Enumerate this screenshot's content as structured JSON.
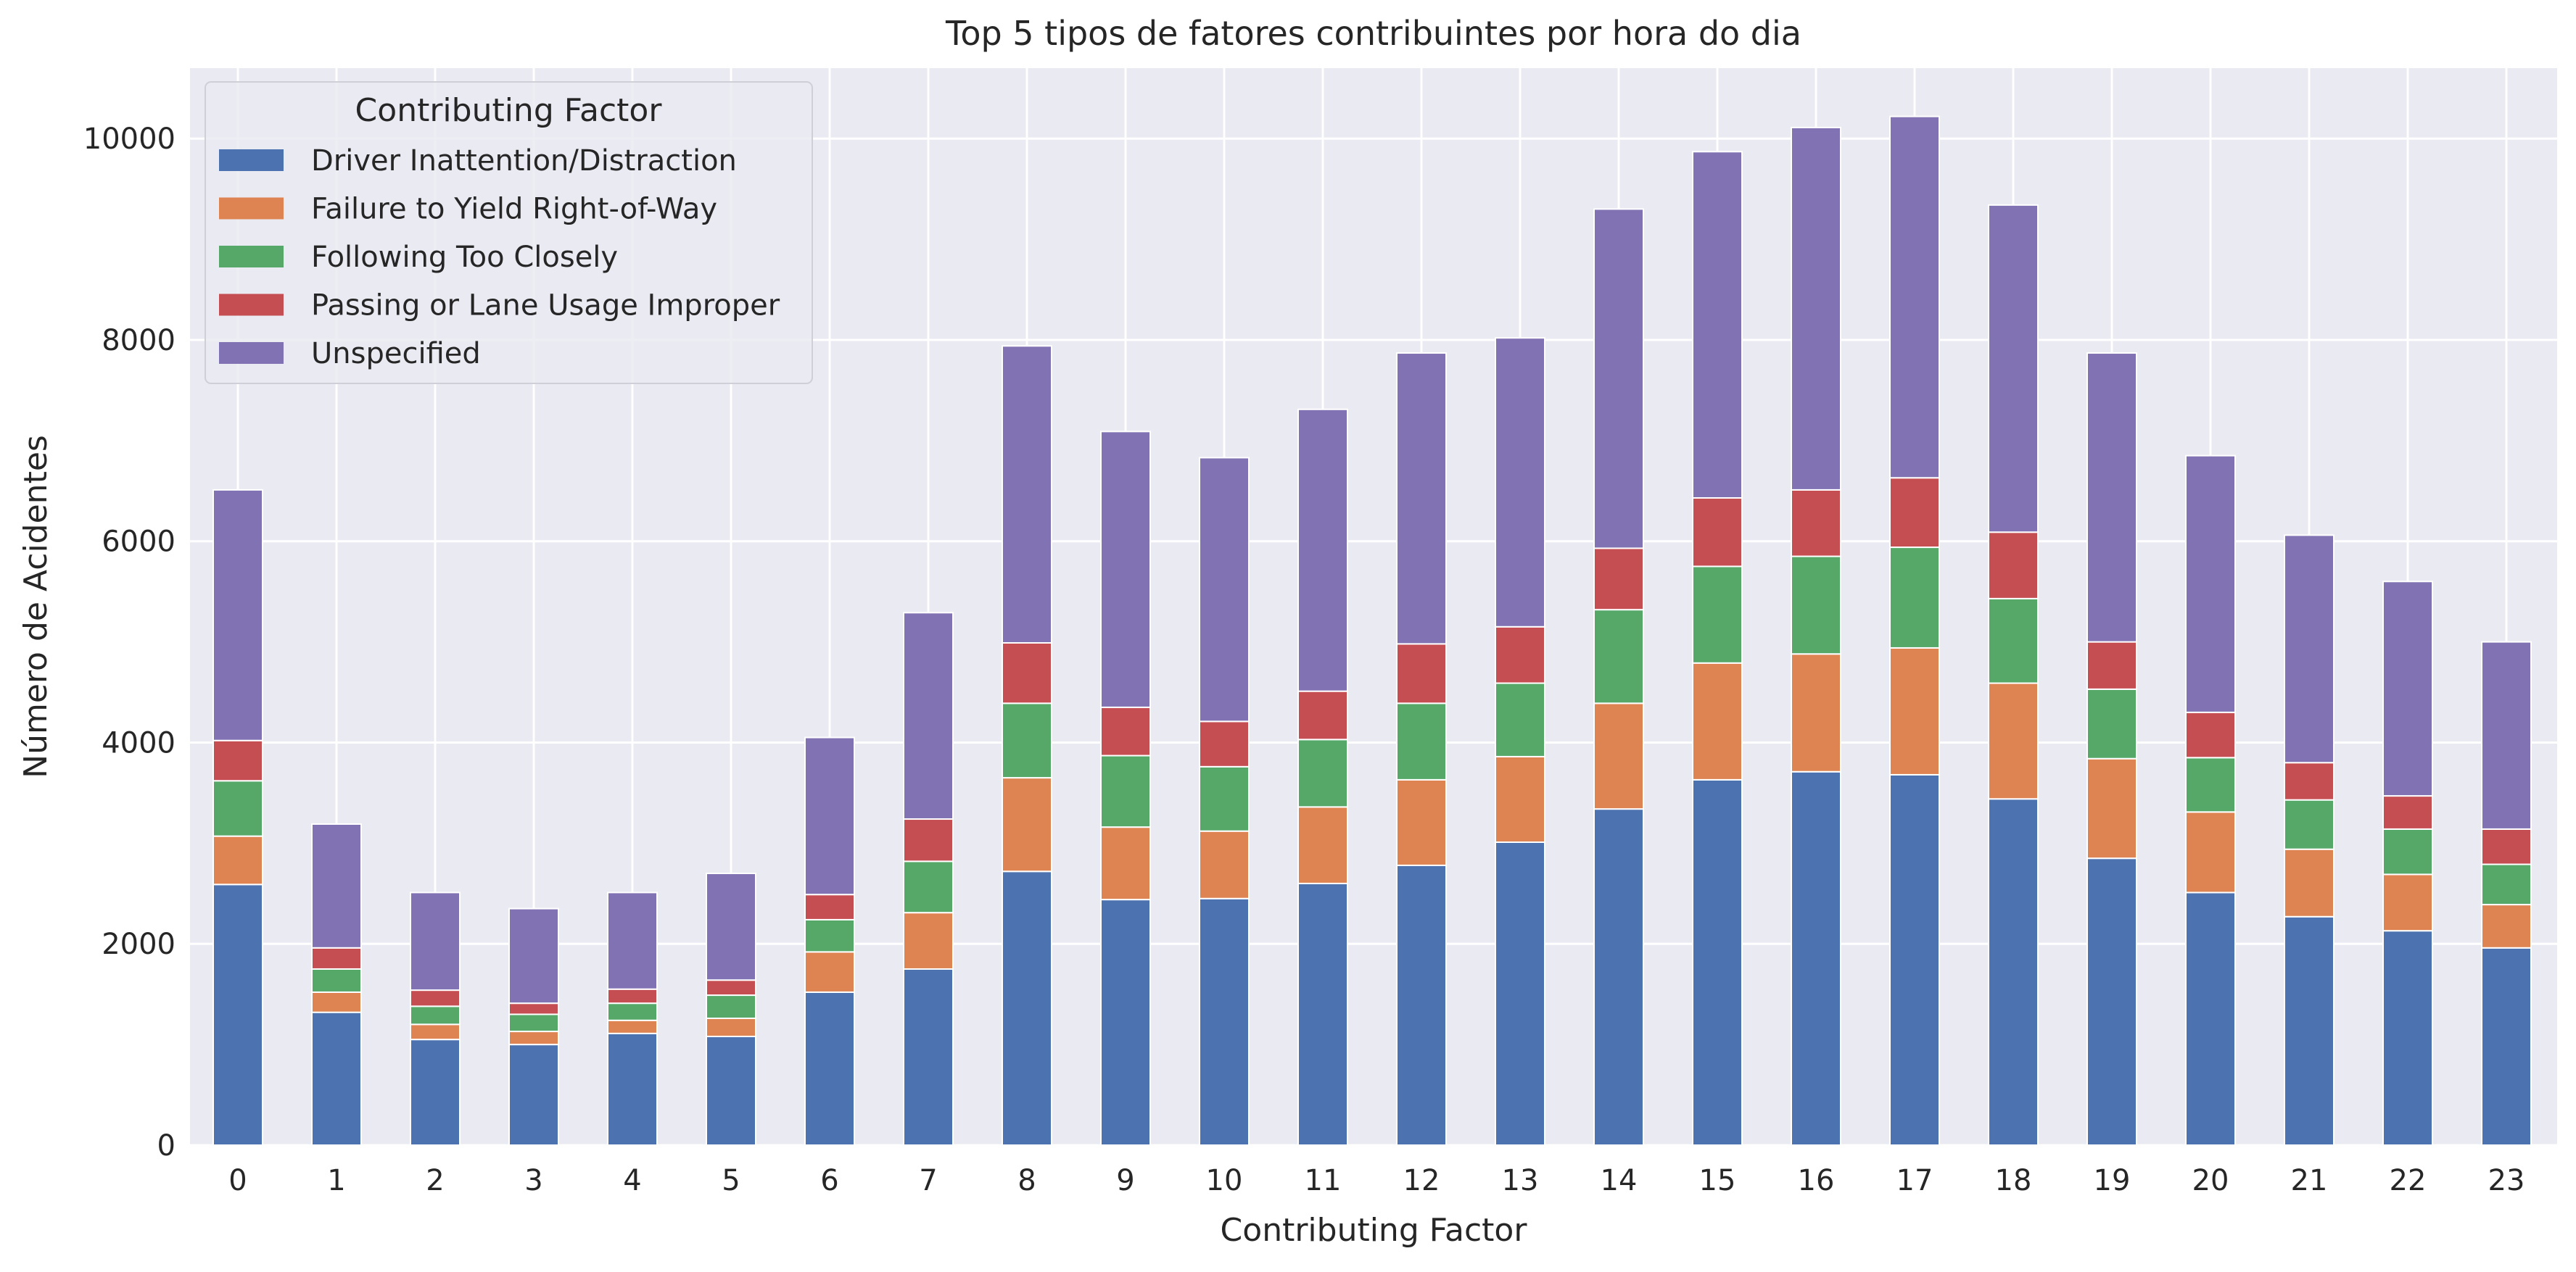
{
  "chart_data": {
    "type": "bar",
    "stacked": true,
    "title": "Top 5 tipos de fatores contribuintes por hora do dia",
    "xlabel": "Contributing Factor",
    "ylabel": "Número de Acidentes",
    "ylim": [
      0,
      10700
    ],
    "yticks": [
      0,
      2000,
      4000,
      6000,
      8000,
      10000
    ],
    "grid": true,
    "legend": {
      "title": "Contributing Factor",
      "placement": "top-left"
    },
    "categories": [
      "0",
      "1",
      "2",
      "3",
      "4",
      "5",
      "6",
      "7",
      "8",
      "9",
      "10",
      "11",
      "12",
      "13",
      "14",
      "15",
      "16",
      "17",
      "18",
      "19",
      "20",
      "21",
      "22",
      "23"
    ],
    "series": [
      {
        "name": "Driver Inattention/Distraction",
        "color": "#4C72B0",
        "values": [
          2590,
          1320,
          1050,
          1000,
          1110,
          1080,
          1520,
          1750,
          2720,
          2440,
          2450,
          2600,
          2780,
          3010,
          3340,
          3630,
          3710,
          3680,
          3440,
          2850,
          2510,
          2270,
          2130,
          1960
        ]
      },
      {
        "name": "Failure to Yield Right-of-Way",
        "color": "#DD8452",
        "values": [
          480,
          200,
          150,
          130,
          130,
          180,
          400,
          560,
          930,
          720,
          670,
          760,
          850,
          850,
          1050,
          1160,
          1170,
          1260,
          1150,
          990,
          800,
          670,
          560,
          430
        ]
      },
      {
        "name": "Following Too Closely",
        "color": "#55A868",
        "values": [
          550,
          230,
          180,
          170,
          170,
          230,
          320,
          510,
          740,
          710,
          640,
          670,
          760,
          730,
          930,
          960,
          970,
          1000,
          840,
          690,
          540,
          490,
          450,
          400
        ]
      },
      {
        "name": "Passing or Lane Usage Improper",
        "color": "#C44E52",
        "values": [
          400,
          210,
          160,
          110,
          140,
          150,
          250,
          420,
          600,
          480,
          450,
          480,
          590,
          560,
          610,
          680,
          660,
          690,
          660,
          470,
          450,
          370,
          330,
          350
        ]
      },
      {
        "name": "Unspecified",
        "color": "#8172B3",
        "values": [
          2490,
          1230,
          970,
          940,
          960,
          1060,
          1560,
          2050,
          2950,
          2740,
          2620,
          2800,
          2890,
          2870,
          3370,
          3440,
          3600,
          3590,
          3250,
          2870,
          2550,
          2260,
          2130,
          1860
        ]
      }
    ]
  }
}
